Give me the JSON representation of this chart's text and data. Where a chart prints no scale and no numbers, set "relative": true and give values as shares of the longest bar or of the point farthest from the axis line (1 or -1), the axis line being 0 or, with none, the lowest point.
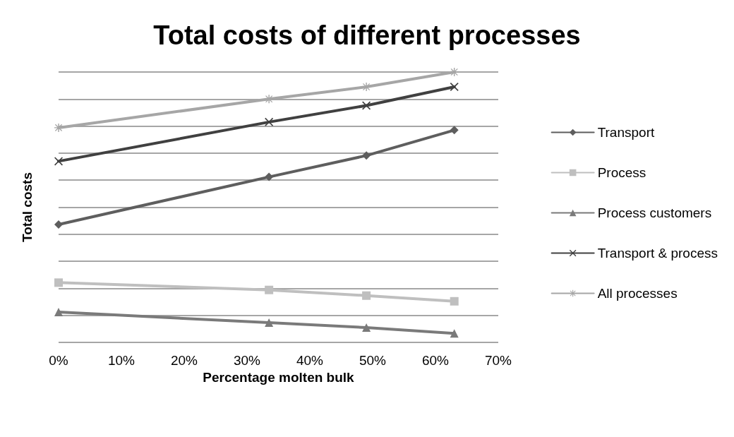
{
  "chart_data": {
    "type": "line",
    "title": "Total costs of different processes",
    "xlabel": "Percentage molten bulk",
    "ylabel": "Total costs",
    "relative": true,
    "x": [
      0,
      33.5,
      49,
      63
    ],
    "xlim": [
      0,
      70
    ],
    "xticks": [
      {
        "value": 0,
        "label": "0%"
      },
      {
        "value": 10,
        "label": "10%"
      },
      {
        "value": 20,
        "label": "20%"
      },
      {
        "value": 30,
        "label": "30%"
      },
      {
        "value": 40,
        "label": "40%"
      },
      {
        "value": 50,
        "label": "50%"
      },
      {
        "value": 60,
        "label": "60%"
      },
      {
        "value": 70,
        "label": "70%"
      }
    ],
    "grid": "y",
    "legend": "right",
    "series": [
      {
        "name": "Transport",
        "color": "#5e5e5e",
        "marker": "diamond",
        "values": [
          0.436,
          0.612,
          0.691,
          0.785
        ]
      },
      {
        "name": "Process",
        "color": "#bfbfbf",
        "marker": "square",
        "values": [
          0.221,
          0.194,
          0.173,
          0.152
        ]
      },
      {
        "name": "Process customers",
        "color": "#7a7a7a",
        "marker": "triangle",
        "values": [
          0.112,
          0.073,
          0.055,
          0.033
        ]
      },
      {
        "name": "Transport & process",
        "color": "#404040",
        "marker": "cross",
        "values": [
          0.67,
          0.815,
          0.876,
          0.945
        ]
      },
      {
        "name": "All processes",
        "color": "#a6a6a6",
        "marker": "star",
        "values": [
          0.794,
          0.9,
          0.945,
          1
        ]
      }
    ]
  }
}
